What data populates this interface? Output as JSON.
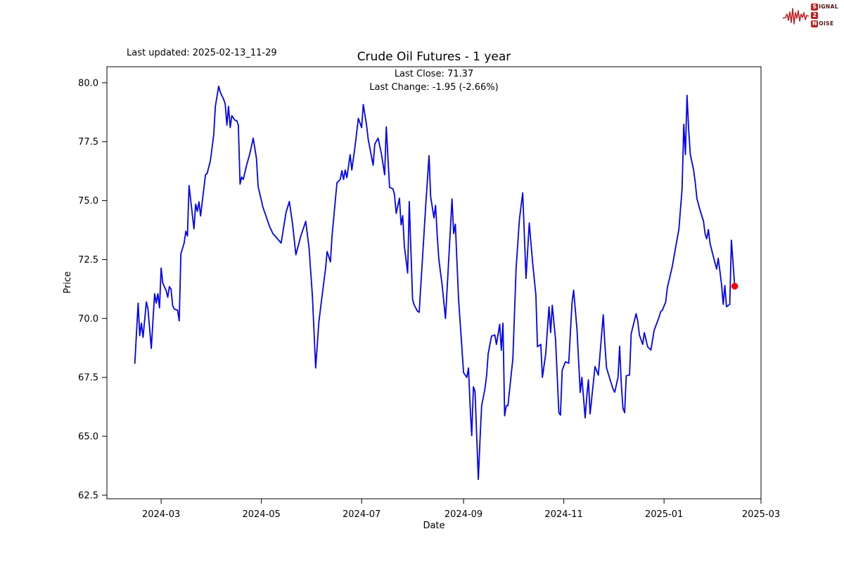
{
  "header": {
    "last_updated": "Last updated: 2025-02-13_11-29",
    "title": "Crude Oil Futures - 1 year"
  },
  "annotations": {
    "last_close": "Last Close: 71.37",
    "last_change": "Last Change: -1.95 (-2.66%)"
  },
  "logo": {
    "signal_s": "S",
    "signal_rest": "IGNAL",
    "two": "2",
    "noise_n": "N",
    "noise_rest": "OISE"
  },
  "chart_data": {
    "type": "line",
    "title": "Crude Oil Futures - 1 year",
    "xlabel": "Date",
    "ylabel": "Price",
    "x_tick_labels": [
      "2024-03",
      "2024-05",
      "2024-07",
      "2024-09",
      "2024-11",
      "2025-01",
      "2025-03"
    ],
    "y_ticks": [
      62.5,
      65.0,
      67.5,
      70.0,
      72.5,
      75.0,
      77.5,
      80.0
    ],
    "xlim": [
      "2024-01-28",
      "2025-03-01"
    ],
    "ylim": [
      62.35,
      80.68
    ],
    "grid": false,
    "line_color": "#0000ff",
    "last_point_marker_color": "#ff0000",
    "last_close": 71.37,
    "last_change": -1.95,
    "last_change_pct": -2.66,
    "series": [
      {
        "name": "Price",
        "points": [
          [
            "2024-02-14",
            68.1
          ],
          [
            "2024-02-16",
            70.65
          ],
          [
            "2024-02-17",
            69.27
          ],
          [
            "2024-02-18",
            69.8
          ],
          [
            "2024-02-19",
            69.2
          ],
          [
            "2024-02-21",
            70.7
          ],
          [
            "2024-02-22",
            70.4
          ],
          [
            "2024-02-24",
            68.73
          ],
          [
            "2024-02-26",
            71.05
          ],
          [
            "2024-02-27",
            70.65
          ],
          [
            "2024-02-28",
            71.05
          ],
          [
            "2024-02-29",
            70.45
          ],
          [
            "2024-03-01",
            72.14
          ],
          [
            "2024-03-02",
            71.5
          ],
          [
            "2024-03-04",
            71.2
          ],
          [
            "2024-03-05",
            70.9
          ],
          [
            "2024-03-06",
            71.35
          ],
          [
            "2024-03-07",
            71.25
          ],
          [
            "2024-03-08",
            70.55
          ],
          [
            "2024-03-09",
            70.4
          ],
          [
            "2024-03-11",
            70.35
          ],
          [
            "2024-03-12",
            69.9
          ],
          [
            "2024-03-13",
            72.74
          ],
          [
            "2024-03-15",
            73.2
          ],
          [
            "2024-03-16",
            73.7
          ],
          [
            "2024-03-17",
            73.5
          ],
          [
            "2024-03-18",
            75.64
          ],
          [
            "2024-03-20",
            74.4
          ],
          [
            "2024-03-21",
            73.8
          ],
          [
            "2024-03-22",
            74.85
          ],
          [
            "2024-03-23",
            74.55
          ],
          [
            "2024-03-24",
            74.95
          ],
          [
            "2024-03-25",
            74.35
          ],
          [
            "2024-03-27",
            75.54
          ],
          [
            "2024-03-28",
            76.1
          ],
          [
            "2024-03-29",
            76.15
          ],
          [
            "2024-03-31",
            76.7
          ],
          [
            "2024-04-02",
            77.8
          ],
          [
            "2024-04-03",
            79.0
          ],
          [
            "2024-04-05",
            79.85
          ],
          [
            "2024-04-06",
            79.6
          ],
          [
            "2024-04-08",
            79.3
          ],
          [
            "2024-04-09",
            79.1
          ],
          [
            "2024-04-10",
            78.2
          ],
          [
            "2024-04-11",
            79.0
          ],
          [
            "2024-04-12",
            78.1
          ],
          [
            "2024-04-13",
            78.6
          ],
          [
            "2024-04-15",
            78.4
          ],
          [
            "2024-04-16",
            78.4
          ],
          [
            "2024-04-17",
            78.2
          ],
          [
            "2024-04-18",
            75.7
          ],
          [
            "2024-04-19",
            76.0
          ],
          [
            "2024-04-20",
            75.9
          ],
          [
            "2024-04-22",
            76.5
          ],
          [
            "2024-04-24",
            77.0
          ],
          [
            "2024-04-26",
            77.65
          ],
          [
            "2024-04-28",
            76.8
          ],
          [
            "2024-04-29",
            75.6
          ],
          [
            "2024-05-02",
            74.7
          ],
          [
            "2024-05-04",
            74.3
          ],
          [
            "2024-05-06",
            73.9
          ],
          [
            "2024-05-08",
            73.6
          ],
          [
            "2024-05-10",
            73.44
          ],
          [
            "2024-05-13",
            73.2
          ],
          [
            "2024-05-16",
            74.5
          ],
          [
            "2024-05-18",
            74.96
          ],
          [
            "2024-05-20",
            74.0
          ],
          [
            "2024-05-22",
            72.7
          ],
          [
            "2024-05-25",
            73.5
          ],
          [
            "2024-05-28",
            74.12
          ],
          [
            "2024-05-30",
            73.0
          ],
          [
            "2024-06-01",
            71.0
          ],
          [
            "2024-06-02",
            69.5
          ],
          [
            "2024-06-03",
            67.9
          ],
          [
            "2024-06-05",
            69.86
          ],
          [
            "2024-06-07",
            71.0
          ],
          [
            "2024-06-09",
            72.1
          ],
          [
            "2024-06-10",
            72.84
          ],
          [
            "2024-06-12",
            72.4
          ],
          [
            "2024-06-13",
            73.5
          ],
          [
            "2024-06-16",
            75.76
          ],
          [
            "2024-06-18",
            75.9
          ],
          [
            "2024-06-19",
            76.27
          ],
          [
            "2024-06-20",
            75.9
          ],
          [
            "2024-06-21",
            76.3
          ],
          [
            "2024-06-22",
            75.97
          ],
          [
            "2024-06-24",
            76.95
          ],
          [
            "2024-06-25",
            76.3
          ],
          [
            "2024-06-27",
            77.3
          ],
          [
            "2024-06-29",
            78.49
          ],
          [
            "2024-07-01",
            78.1
          ],
          [
            "2024-07-02",
            79.08
          ],
          [
            "2024-07-04",
            78.2
          ],
          [
            "2024-07-05",
            77.6
          ],
          [
            "2024-07-08",
            76.5
          ],
          [
            "2024-07-09",
            77.4
          ],
          [
            "2024-07-11",
            77.65
          ],
          [
            "2024-07-13",
            77.0
          ],
          [
            "2024-07-15",
            76.1
          ],
          [
            "2024-07-16",
            78.13
          ],
          [
            "2024-07-18",
            75.56
          ],
          [
            "2024-07-20",
            75.5
          ],
          [
            "2024-07-21",
            75.26
          ],
          [
            "2024-07-22",
            74.46
          ],
          [
            "2024-07-24",
            75.1
          ],
          [
            "2024-07-25",
            73.97
          ],
          [
            "2024-07-26",
            74.36
          ],
          [
            "2024-07-27",
            73.07
          ],
          [
            "2024-07-29",
            71.93
          ],
          [
            "2024-07-30",
            74.96
          ],
          [
            "2024-08-01",
            70.81
          ],
          [
            "2024-08-02",
            70.56
          ],
          [
            "2024-08-04",
            70.31
          ],
          [
            "2024-08-05",
            70.26
          ],
          [
            "2024-08-07",
            72.5
          ],
          [
            "2024-08-09",
            74.8
          ],
          [
            "2024-08-11",
            76.91
          ],
          [
            "2024-08-12",
            75.17
          ],
          [
            "2024-08-14",
            74.27
          ],
          [
            "2024-08-15",
            74.8
          ],
          [
            "2024-08-16",
            73.5
          ],
          [
            "2024-08-17",
            72.5
          ],
          [
            "2024-08-19",
            71.4
          ],
          [
            "2024-08-21",
            70.0
          ],
          [
            "2024-08-23",
            72.5
          ],
          [
            "2024-08-25",
            75.07
          ],
          [
            "2024-08-26",
            73.6
          ],
          [
            "2024-08-27",
            74.0
          ],
          [
            "2024-08-29",
            70.76
          ],
          [
            "2024-08-31",
            68.77
          ],
          [
            "2024-09-01",
            67.7
          ],
          [
            "2024-09-03",
            67.5
          ],
          [
            "2024-09-04",
            67.9
          ],
          [
            "2024-09-05",
            66.3
          ],
          [
            "2024-09-06",
            65.03
          ],
          [
            "2024-09-07",
            67.1
          ],
          [
            "2024-09-08",
            66.9
          ],
          [
            "2024-09-10",
            63.17
          ],
          [
            "2024-09-11",
            64.8
          ],
          [
            "2024-09-12",
            66.3
          ],
          [
            "2024-09-14",
            67.0
          ],
          [
            "2024-09-15",
            67.56
          ],
          [
            "2024-09-16",
            68.5
          ],
          [
            "2024-09-18",
            69.25
          ],
          [
            "2024-09-20",
            69.3
          ],
          [
            "2024-09-21",
            68.9
          ],
          [
            "2024-09-23",
            69.75
          ],
          [
            "2024-09-24",
            68.65
          ],
          [
            "2024-09-25",
            69.8
          ],
          [
            "2024-09-26",
            65.87
          ],
          [
            "2024-09-27",
            66.3
          ],
          [
            "2024-09-28",
            66.3
          ],
          [
            "2024-10-01",
            68.3
          ],
          [
            "2024-10-02",
            70.2
          ],
          [
            "2024-10-03",
            72.13
          ],
          [
            "2024-10-05",
            74.2
          ],
          [
            "2024-10-07",
            75.33
          ],
          [
            "2024-10-09",
            71.7
          ],
          [
            "2024-10-11",
            74.05
          ],
          [
            "2024-10-13",
            72.4
          ],
          [
            "2024-10-15",
            71.0
          ],
          [
            "2024-10-16",
            68.8
          ],
          [
            "2024-10-18",
            68.9
          ],
          [
            "2024-10-19",
            67.5
          ],
          [
            "2024-10-21",
            68.5
          ],
          [
            "2024-10-23",
            70.5
          ],
          [
            "2024-10-24",
            69.4
          ],
          [
            "2024-10-25",
            70.56
          ],
          [
            "2024-10-27",
            69.1
          ],
          [
            "2024-10-29",
            66.0
          ],
          [
            "2024-10-30",
            65.9
          ],
          [
            "2024-10-31",
            67.8
          ],
          [
            "2024-11-02",
            68.16
          ],
          [
            "2024-11-04",
            68.1
          ],
          [
            "2024-11-06",
            70.66
          ],
          [
            "2024-11-07",
            71.2
          ],
          [
            "2024-11-09",
            69.56
          ],
          [
            "2024-11-11",
            66.86
          ],
          [
            "2024-11-12",
            67.5
          ],
          [
            "2024-11-14",
            65.78
          ],
          [
            "2024-11-15",
            66.7
          ],
          [
            "2024-11-16",
            67.4
          ],
          [
            "2024-11-17",
            65.95
          ],
          [
            "2024-11-20",
            67.96
          ],
          [
            "2024-11-22",
            67.6
          ],
          [
            "2024-11-25",
            70.16
          ],
          [
            "2024-11-26",
            68.9
          ],
          [
            "2024-11-27",
            67.9
          ],
          [
            "2024-11-28",
            67.67
          ],
          [
            "2024-12-01",
            67.0
          ],
          [
            "2024-12-02",
            66.87
          ],
          [
            "2024-12-04",
            67.5
          ],
          [
            "2024-12-05",
            68.82
          ],
          [
            "2024-12-06",
            67.2
          ],
          [
            "2024-12-07",
            66.2
          ],
          [
            "2024-12-08",
            66.0
          ],
          [
            "2024-12-09",
            67.57
          ],
          [
            "2024-12-11",
            67.6
          ],
          [
            "2024-12-12",
            69.35
          ],
          [
            "2024-12-15",
            70.2
          ],
          [
            "2024-12-16",
            69.9
          ],
          [
            "2024-12-17",
            69.3
          ],
          [
            "2024-12-19",
            68.9
          ],
          [
            "2024-12-20",
            69.4
          ],
          [
            "2024-12-22",
            68.8
          ],
          [
            "2024-12-24",
            68.66
          ],
          [
            "2024-12-26",
            69.5
          ],
          [
            "2024-12-29",
            70.06
          ],
          [
            "2024-12-30",
            70.3
          ],
          [
            "2024-12-31",
            70.35
          ],
          [
            "2025-01-02",
            70.7
          ],
          [
            "2025-01-03",
            71.3
          ],
          [
            "2025-01-05",
            71.9
          ],
          [
            "2025-01-06",
            72.2
          ],
          [
            "2025-01-08",
            73.0
          ],
          [
            "2025-01-10",
            73.77
          ],
          [
            "2025-01-12",
            75.5
          ],
          [
            "2025-01-13",
            78.24
          ],
          [
            "2025-01-14",
            76.95
          ],
          [
            "2025-01-15",
            79.47
          ],
          [
            "2025-01-16",
            78.0
          ],
          [
            "2025-01-17",
            76.95
          ],
          [
            "2025-01-19",
            76.3
          ],
          [
            "2025-01-20",
            75.77
          ],
          [
            "2025-01-21",
            75.08
          ],
          [
            "2025-01-23",
            74.58
          ],
          [
            "2025-01-25",
            74.13
          ],
          [
            "2025-01-26",
            73.58
          ],
          [
            "2025-01-27",
            73.38
          ],
          [
            "2025-01-28",
            73.77
          ],
          [
            "2025-01-29",
            73.18
          ],
          [
            "2025-01-31",
            72.63
          ],
          [
            "2025-02-02",
            72.1
          ],
          [
            "2025-02-03",
            72.55
          ],
          [
            "2025-02-04",
            72.0
          ],
          [
            "2025-02-05",
            71.44
          ],
          [
            "2025-02-06",
            70.6
          ],
          [
            "2025-02-07",
            71.4
          ],
          [
            "2025-02-08",
            70.5
          ],
          [
            "2025-02-10",
            70.6
          ],
          [
            "2025-02-11",
            73.32
          ],
          [
            "2025-02-13",
            71.37
          ]
        ]
      }
    ]
  }
}
